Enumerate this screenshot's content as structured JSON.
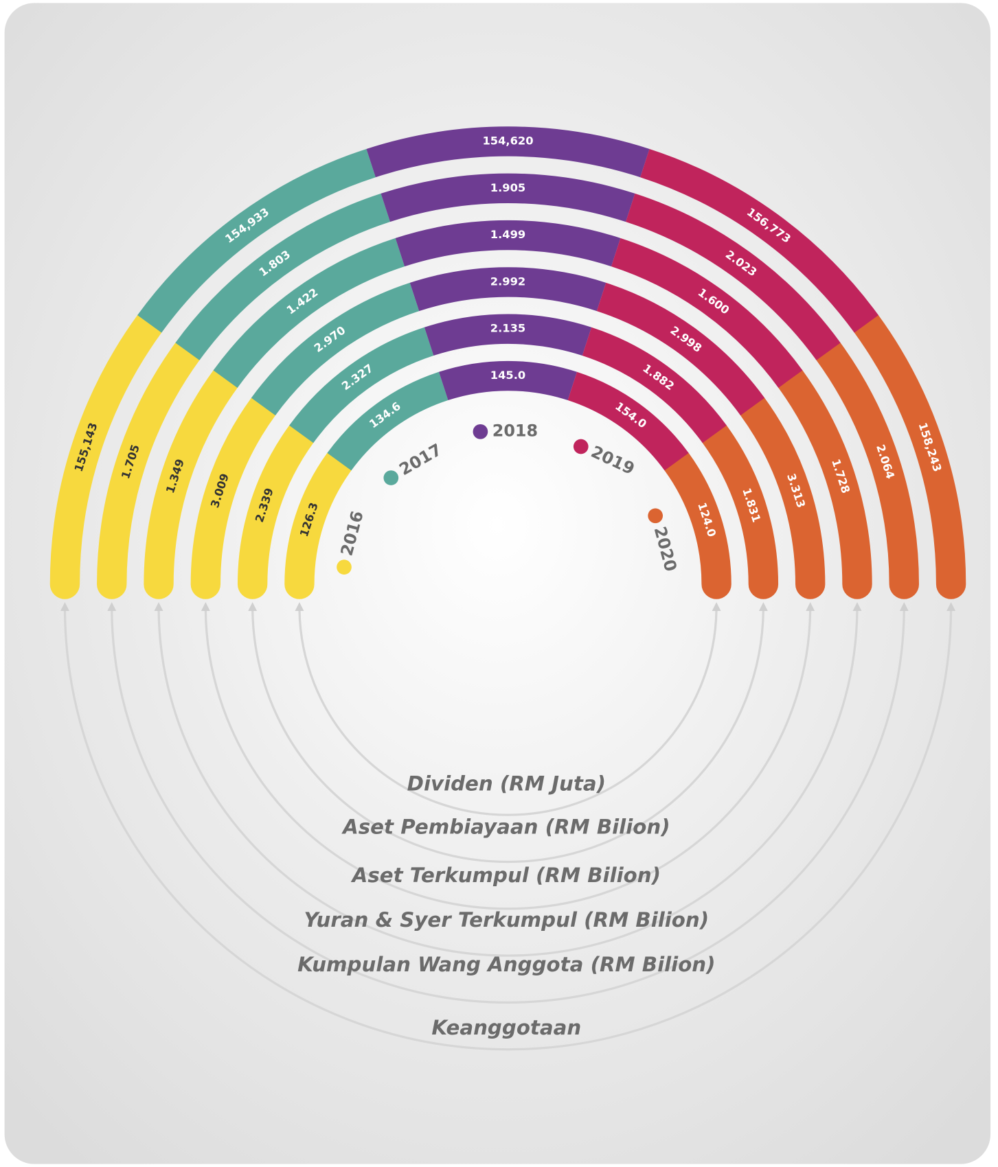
{
  "legend": [
    {
      "label": "2016",
      "color": "#f7d93e"
    },
    {
      "label": "2017",
      "color": "#5aa99c"
    },
    {
      "label": "2018",
      "color": "#6e3c92"
    },
    {
      "label": "2019",
      "color": "#c0245c"
    },
    {
      "label": "2020",
      "color": "#db6431"
    }
  ],
  "rings": [
    {
      "label": "Keanggotaan",
      "values": [
        "155,143",
        "154,933",
        "154,620",
        "156,773",
        "158,243"
      ]
    },
    {
      "label": "Kumpulan Wang Anggota (RM Bilion)",
      "values": [
        "1.705",
        "1.803",
        "1.905",
        "2.023",
        "2.064"
      ]
    },
    {
      "label": "Yuran & Syer Terkumpul (RM Bilion)",
      "values": [
        "1.349",
        "1.422",
        "1.499",
        "1.600",
        "1.728"
      ]
    },
    {
      "label": "Aset Terkumpul (RM Bilion)",
      "values": [
        "3.009",
        "2.970",
        "2.992",
        "2.998",
        "3.313"
      ]
    },
    {
      "label": "Aset Pembiayaan (RM Bilion)",
      "values": [
        "2.339",
        "2.327",
        "2.135",
        "1.882",
        "1.831"
      ]
    },
    {
      "label": "Dividen (RM Juta)",
      "values": [
        "126.3",
        "134.6",
        "145.0",
        "154.0",
        "124.0"
      ]
    }
  ]
}
